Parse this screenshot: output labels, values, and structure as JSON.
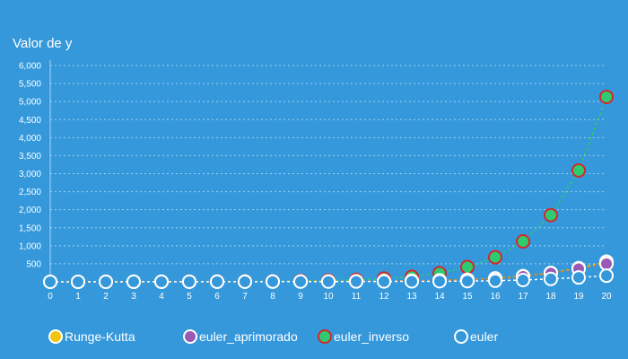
{
  "colors": {
    "background": "#3498db",
    "text": "#ffffff",
    "gridline": "#aed6f1",
    "axis_line": "#aed6f1"
  },
  "chart_data": {
    "type": "line",
    "title": "Valor de y",
    "xlabel": "",
    "ylabel": "",
    "grid": true,
    "legend_position": "bottom",
    "xlim": [
      0,
      20
    ],
    "ylim": [
      0,
      6000
    ],
    "x": [
      0,
      1,
      2,
      3,
      4,
      5,
      6,
      7,
      8,
      9,
      10,
      11,
      12,
      13,
      14,
      15,
      16,
      17,
      18,
      19,
      20
    ],
    "x_tick_labels": [
      "0",
      "1",
      "2",
      "3",
      "4",
      "5",
      "6",
      "7",
      "8",
      "9",
      "10",
      "11",
      "12",
      "13",
      "14",
      "15",
      "16",
      "17",
      "18",
      "19",
      "20"
    ],
    "y_ticks": [
      500,
      1000,
      1500,
      2000,
      2500,
      3000,
      3500,
      4000,
      4500,
      5000,
      5500,
      6000
    ],
    "y_tick_labels": [
      "500",
      "1,000",
      "1,500",
      "2,000",
      "2,500",
      "3,000",
      "3,500",
      "4,000",
      "4,500",
      "5,000",
      "5,500",
      "6,000"
    ],
    "series": [
      {
        "name": "euler_inverso",
        "line_color": "#2ecc71",
        "marker_fill": "#2ecc71",
        "marker_stroke": "#d62728",
        "values": [
          1,
          1,
          2,
          3,
          4,
          6,
          8,
          12,
          17,
          25,
          36,
          52,
          90,
          140,
          240,
          410,
          680,
          1120,
          1850,
          3090,
          5130
        ]
      },
      {
        "name": "Runge-Kutta",
        "line_color": "#f1c40f",
        "marker_fill": "#f1c40f",
        "marker_stroke": "#ffffff",
        "values": [
          1,
          1,
          2,
          2,
          3,
          4,
          5,
          6,
          8,
          10,
          13,
          17,
          22,
          30,
          40,
          60,
          95,
          160,
          250,
          380,
          560
        ]
      },
      {
        "name": "euler_aprimorado",
        "line_color": "#e67e22",
        "marker_fill": "#9b59b6",
        "marker_stroke": "#ffffff",
        "values": [
          1,
          1,
          2,
          2,
          3,
          4,
          5,
          6,
          8,
          10,
          13,
          17,
          22,
          29,
          39,
          55,
          85,
          150,
          240,
          360,
          500
        ]
      },
      {
        "name": "euler",
        "line_color": "#ffffff",
        "marker_fill": "#3498db",
        "marker_stroke": "#ffffff",
        "values": [
          1,
          1,
          1,
          2,
          2,
          3,
          3,
          4,
          5,
          6,
          7,
          8,
          10,
          12,
          15,
          20,
          30,
          50,
          80,
          120,
          170
        ]
      }
    ],
    "legend": [
      {
        "name": "Runge-Kutta",
        "marker_fill": "#f1c40f",
        "marker_stroke": "#ffffff"
      },
      {
        "name": "euler_aprimorado",
        "marker_fill": "#9b59b6",
        "marker_stroke": "#ffffff"
      },
      {
        "name": "euler_inverso",
        "marker_fill": "#2ecc71",
        "marker_stroke": "#d62728"
      },
      {
        "name": "euler",
        "marker_fill": "#3498db",
        "marker_stroke": "#ffffff"
      }
    ]
  }
}
